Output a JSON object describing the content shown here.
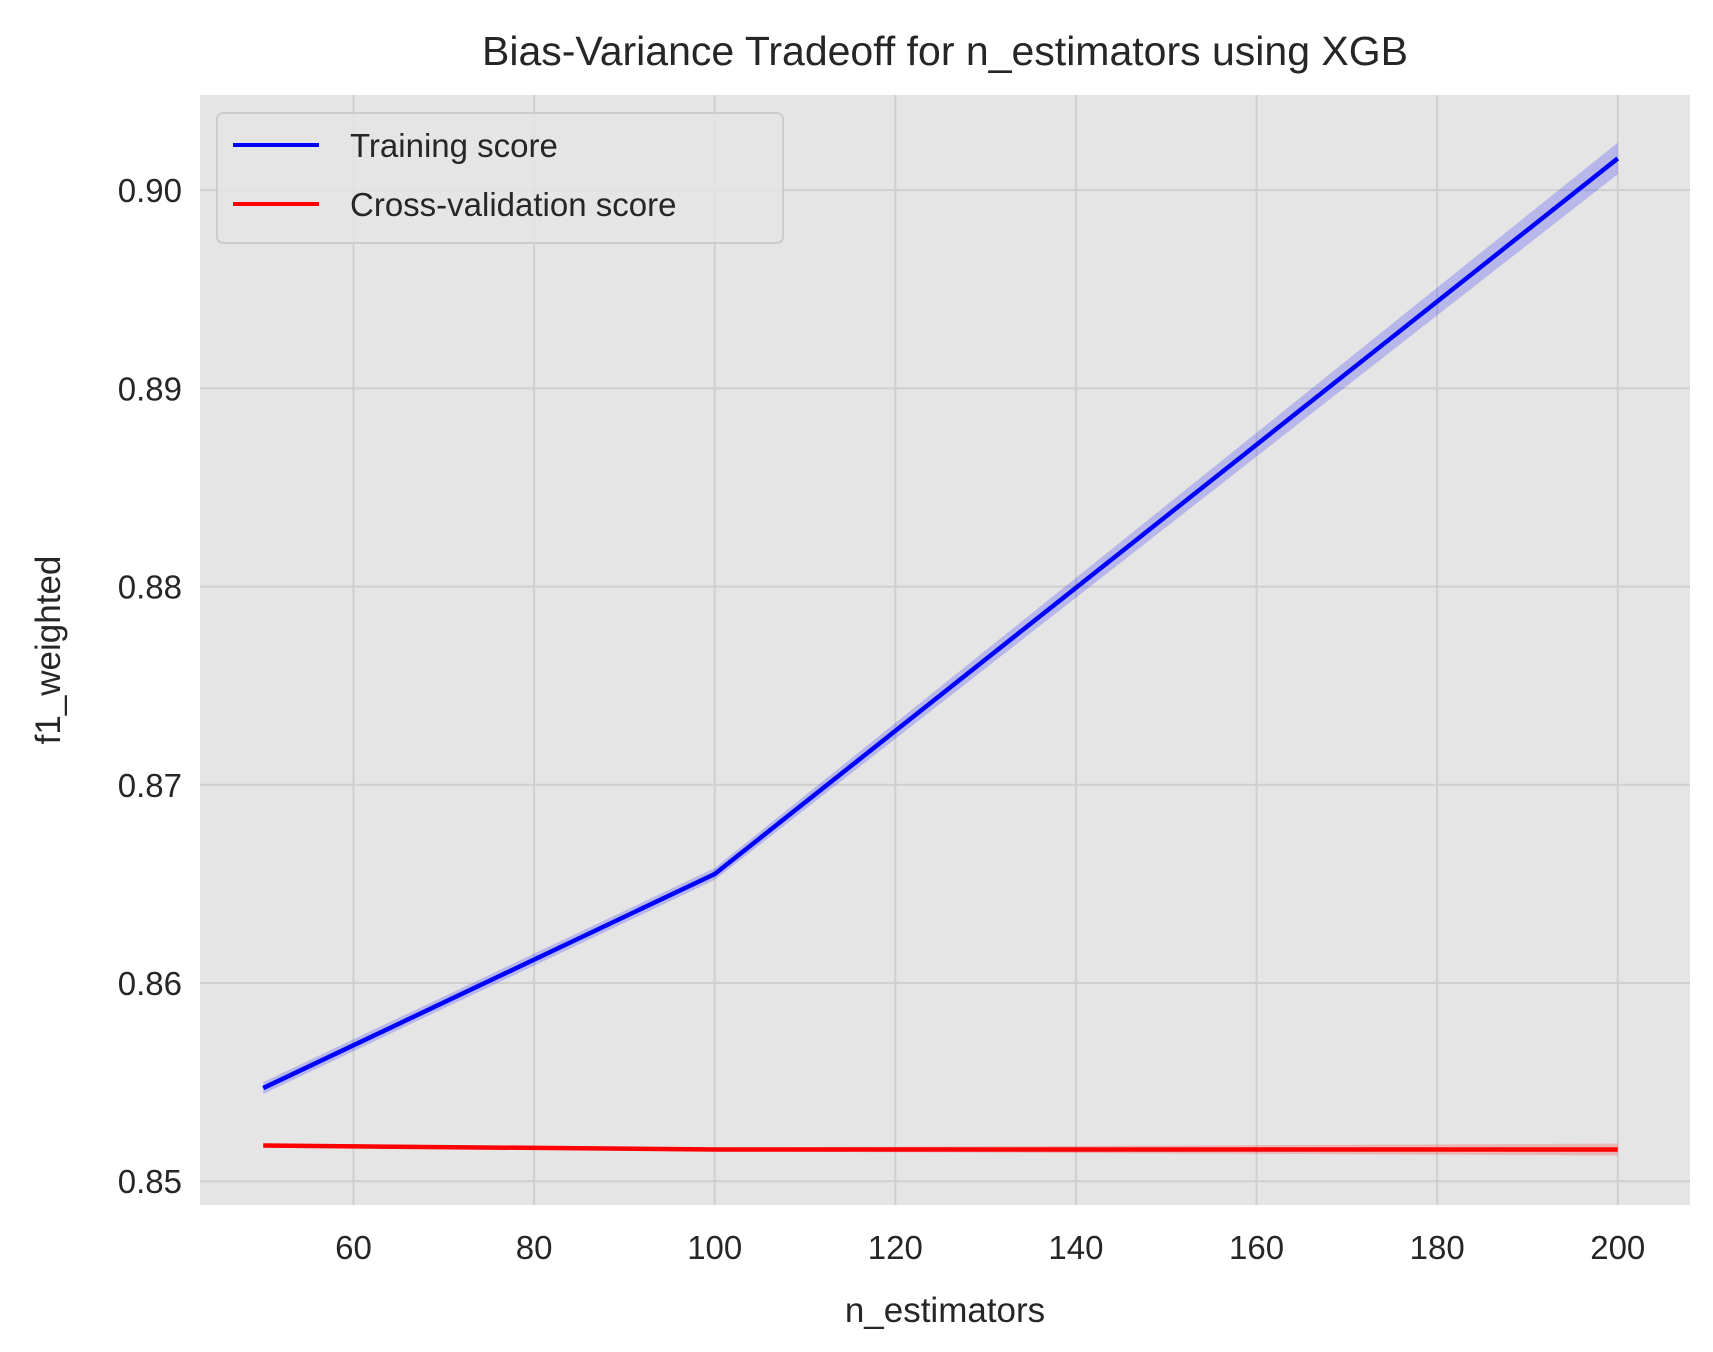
{
  "chart_data": {
    "type": "line",
    "title": "Bias-Variance Tradeoff for n_estimators using XGB",
    "xlabel": "n_estimators",
    "ylabel": "f1_weighted",
    "x": [
      50,
      100,
      200
    ],
    "xlim": [
      43,
      208
    ],
    "ylim": [
      0.8488,
      0.9048
    ],
    "xticks": [
      60,
      80,
      100,
      120,
      140,
      160,
      180,
      200
    ],
    "xtick_labels": [
      "60",
      "80",
      "100",
      "120",
      "140",
      "160",
      "180",
      "200"
    ],
    "yticks": [
      0.85,
      0.86,
      0.87,
      0.88,
      0.89,
      0.9
    ],
    "ytick_labels": [
      "0.85",
      "0.86",
      "0.87",
      "0.88",
      "0.89",
      "0.90"
    ],
    "grid": true,
    "legend_position": "top-left",
    "background_color": "#e5e5e5",
    "grid_color": "#cfcfcf",
    "series": [
      {
        "name": "Training score",
        "color": "#0000ff",
        "values": [
          0.8547,
          0.8655,
          0.9016
        ],
        "std": [
          0.0003,
          0.0003,
          0.0008
        ]
      },
      {
        "name": "Cross-validation score",
        "color": "#ff0000",
        "values": [
          0.8518,
          0.8516,
          0.8516
        ],
        "std": [
          0.0001,
          0.0001,
          0.0003
        ]
      }
    ]
  }
}
